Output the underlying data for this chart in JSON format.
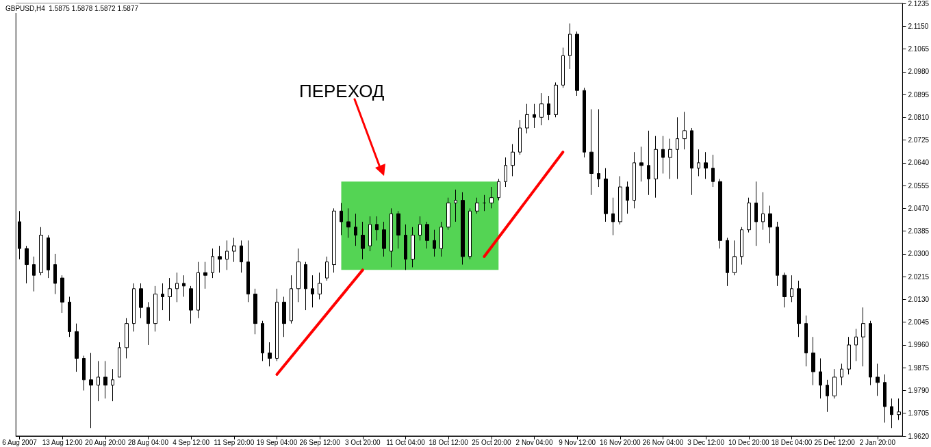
{
  "chart_data": {
    "type": "candlestick",
    "title": "GBPUSD,H4  1.5875 1.5878 1.5872 1.5877",
    "color": "#000000",
    "marker": "none",
    "grid": false,
    "annotations": [
      "ПЕРЕХОД"
    ],
    "categories": [
      "6 Aug 2007",
      null,
      null,
      null,
      null,
      null,
      "13 Aug 12:00",
      null,
      null,
      null,
      null,
      null,
      "20 Aug 20:00",
      null,
      null,
      null,
      null,
      null,
      "28 Aug 04:00",
      null,
      null,
      null,
      null,
      null,
      "4 Sep 12:00",
      null,
      null,
      null,
      null,
      null,
      "11 Sep 20:00",
      null,
      null,
      null,
      null,
      null,
      "19 Sep 04:00",
      null,
      null,
      null,
      null,
      null,
      "26 Sep 12:00",
      null,
      null,
      null,
      null,
      null,
      "3 Oct 20:00",
      null,
      null,
      null,
      null,
      null,
      "11 Oct 04:00",
      null,
      null,
      null,
      null,
      null,
      "18 Oct 12:00",
      null,
      null,
      null,
      null,
      null,
      "25 Oct 20:00",
      null,
      null,
      null,
      null,
      null,
      "2 Nov 04:00",
      null,
      null,
      null,
      null,
      null,
      "9 Nov 12:00",
      null,
      null,
      null,
      null,
      null,
      "16 Nov 20:00",
      null,
      null,
      null,
      null,
      null,
      "26 Nov 04:00",
      null,
      null,
      null,
      null,
      null,
      "3 Dec 12:00",
      null,
      null,
      null,
      null,
      null,
      "10 Dec 20:00",
      null,
      null,
      null,
      null,
      null,
      "18 Dec 04:00",
      null,
      null,
      null,
      null,
      null,
      "25 Dec 12:00",
      null,
      null,
      null,
      null,
      null,
      "2 Jan 20:00",
      null,
      null,
      null
    ],
    "ohlc": [
      [
        2.042,
        2.046,
        2.028,
        2.032
      ],
      [
        2.032,
        2.033,
        2.019,
        2.026
      ],
      [
        2.026,
        2.029,
        2.016,
        2.022
      ],
      [
        2.023,
        2.04,
        2.022,
        2.037
      ],
      [
        2.036,
        2.037,
        2.021,
        2.024
      ],
      [
        2.026,
        2.03,
        2.015,
        2.019
      ],
      [
        2.021,
        2.022,
        2.008,
        2.012
      ],
      [
        2.012,
        2.014,
        1.999,
        2.001
      ],
      [
        2.001,
        2.004,
        1.986,
        1.991
      ],
      [
        1.991,
        1.992,
        1.979,
        1.983
      ],
      [
        1.983,
        1.993,
        1.965,
        1.981
      ],
      [
        1.981,
        1.99,
        1.975,
        1.984
      ],
      [
        1.984,
        1.99,
        1.976,
        1.981
      ],
      [
        1.981,
        1.987,
        1.975,
        1.983
      ],
      [
        1.984,
        1.997,
        1.984,
        1.995
      ],
      [
        1.995,
        2.006,
        1.991,
        2.004
      ],
      [
        2.004,
        2.019,
        2.001,
        2.017
      ],
      [
        2.017,
        2.019,
        2.006,
        2.01
      ],
      [
        2.01,
        2.012,
        1.996,
        2.004
      ],
      [
        2.004,
        2.018,
        2.001,
        2.015
      ],
      [
        2.015,
        2.019,
        2.009,
        2.014
      ],
      [
        2.014,
        2.021,
        2.005,
        2.017
      ],
      [
        2.017,
        2.023,
        2.012,
        2.019
      ],
      [
        2.019,
        2.022,
        2.014,
        2.018
      ],
      [
        2.017,
        2.018,
        2.004,
        2.009
      ],
      [
        2.009,
        2.027,
        2.006,
        2.023
      ],
      [
        2.023,
        2.027,
        2.017,
        2.022
      ],
      [
        2.023,
        2.032,
        2.021,
        2.029
      ],
      [
        2.029,
        2.033,
        2.023,
        2.028
      ],
      [
        2.028,
        2.035,
        2.024,
        2.031
      ],
      [
        2.031,
        2.036,
        2.027,
        2.033
      ],
      [
        2.033,
        2.035,
        2.023,
        2.027
      ],
      [
        2.027,
        2.035,
        2.012,
        2.015
      ],
      [
        2.015,
        2.017,
        2.0,
        2.004
      ],
      [
        2.004,
        2.005,
        1.99,
        1.993
      ],
      [
        1.993,
        1.997,
        1.988,
        1.991
      ],
      [
        1.991,
        2.017,
        1.99,
        2.012
      ],
      [
        2.012,
        2.014,
        1.999,
        2.004
      ],
      [
        2.005,
        2.022,
        2.004,
        2.017
      ],
      [
        2.017,
        2.032,
        2.012,
        2.027
      ],
      [
        2.026,
        2.027,
        2.009,
        2.017
      ],
      [
        2.017,
        2.022,
        2.01,
        2.015
      ],
      [
        2.015,
        2.023,
        2.013,
        2.019
      ],
      [
        2.021,
        2.029,
        2.02,
        2.027
      ],
      [
        2.026,
        2.047,
        2.023,
        2.046
      ],
      [
        2.046,
        2.049,
        2.037,
        2.042
      ],
      [
        2.042,
        2.047,
        2.036,
        2.04
      ],
      [
        2.04,
        2.045,
        2.033,
        2.037
      ],
      [
        2.037,
        2.042,
        2.028,
        2.032
      ],
      [
        2.033,
        2.044,
        2.031,
        2.041
      ],
      [
        2.041,
        2.044,
        2.035,
        2.039
      ],
      [
        2.039,
        2.042,
        2.029,
        2.032
      ],
      [
        2.031,
        2.047,
        2.025,
        2.045
      ],
      [
        2.045,
        2.046,
        2.032,
        2.037
      ],
      [
        2.037,
        2.041,
        2.024,
        2.028
      ],
      [
        2.028,
        2.04,
        2.025,
        2.037
      ],
      [
        2.037,
        2.044,
        2.035,
        2.041
      ],
      [
        2.041,
        2.042,
        2.032,
        2.035
      ],
      [
        2.035,
        2.039,
        2.029,
        2.032
      ],
      [
        2.032,
        2.042,
        2.029,
        2.04
      ],
      [
        2.04,
        2.051,
        2.039,
        2.049
      ],
      [
        2.049,
        2.054,
        2.042,
        2.05
      ],
      [
        2.05,
        2.053,
        2.026,
        2.029
      ],
      [
        2.029,
        2.047,
        2.028,
        2.046
      ],
      [
        2.046,
        2.051,
        2.045,
        2.049
      ],
      [
        2.049,
        2.052,
        2.046,
        2.049
      ],
      [
        2.049,
        2.055,
        2.047,
        2.051
      ],
      [
        2.051,
        2.058,
        2.05,
        2.057
      ],
      [
        2.057,
        2.066,
        2.055,
        2.063
      ],
      [
        2.063,
        2.071,
        2.059,
        2.068
      ],
      [
        2.068,
        2.08,
        2.067,
        2.077
      ],
      [
        2.077,
        2.086,
        2.075,
        2.082
      ],
      [
        2.082,
        2.086,
        2.077,
        2.081
      ],
      [
        2.081,
        2.09,
        2.078,
        2.086
      ],
      [
        2.086,
        2.089,
        2.08,
        2.082
      ],
      [
        2.082,
        2.094,
        2.081,
        2.093
      ],
      [
        2.093,
        2.107,
        2.092,
        2.104
      ],
      [
        2.104,
        2.116,
        2.099,
        2.112
      ],
      [
        2.112,
        2.113,
        2.089,
        2.091
      ],
      [
        2.091,
        2.092,
        2.066,
        2.068
      ],
      [
        2.068,
        2.084,
        2.052,
        2.06
      ],
      [
        2.06,
        2.084,
        2.055,
        2.058
      ],
      [
        2.058,
        2.062,
        2.042,
        2.045
      ],
      [
        2.045,
        2.051,
        2.037,
        2.042
      ],
      [
        2.042,
        2.059,
        2.041,
        2.055
      ],
      [
        2.055,
        2.057,
        2.045,
        2.05
      ],
      [
        2.05,
        2.068,
        2.047,
        2.064
      ],
      [
        2.064,
        2.07,
        2.057,
        2.063
      ],
      [
        2.063,
        2.076,
        2.052,
        2.058
      ],
      [
        2.058,
        2.074,
        2.051,
        2.069
      ],
      [
        2.069,
        2.074,
        2.06,
        2.066
      ],
      [
        2.066,
        2.073,
        2.058,
        2.069
      ],
      [
        2.069,
        2.081,
        2.058,
        2.073
      ],
      [
        2.073,
        2.083,
        2.069,
        2.076
      ],
      [
        2.076,
        2.077,
        2.052,
        2.062
      ],
      [
        2.062,
        2.069,
        2.059,
        2.064
      ],
      [
        2.064,
        2.068,
        2.058,
        2.062
      ],
      [
        2.062,
        2.067,
        2.055,
        2.057
      ],
      [
        2.057,
        2.058,
        2.032,
        2.035
      ],
      [
        2.035,
        2.036,
        2.018,
        2.023
      ],
      [
        2.023,
        2.035,
        2.022,
        2.029
      ],
      [
        2.029,
        2.04,
        2.026,
        2.039
      ],
      [
        2.039,
        2.051,
        2.038,
        2.049
      ],
      [
        2.049,
        2.057,
        2.033,
        2.042
      ],
      [
        2.042,
        2.053,
        2.039,
        2.045
      ],
      [
        2.045,
        2.048,
        2.034,
        2.04
      ],
      [
        2.04,
        2.042,
        2.018,
        2.022
      ],
      [
        2.022,
        2.023,
        2.01,
        2.014
      ],
      [
        2.014,
        2.022,
        2.012,
        2.017
      ],
      [
        2.017,
        2.02,
        1.999,
        2.004
      ],
      [
        2.004,
        2.007,
        1.988,
        1.993
      ],
      [
        1.993,
        1.999,
        1.981,
        1.986
      ],
      [
        1.986,
        1.991,
        1.976,
        1.981
      ],
      [
        1.981,
        1.983,
        1.971,
        1.977
      ],
      [
        1.977,
        1.987,
        1.976,
        1.984
      ],
      [
        1.984,
        1.989,
        1.981,
        1.987
      ],
      [
        1.987,
        1.999,
        1.985,
        1.996
      ],
      [
        1.996,
        2.002,
        1.99,
        1.999
      ],
      [
        1.999,
        2.01,
        1.988,
        2.004
      ],
      [
        2.004,
        2.005,
        1.981,
        1.984
      ],
      [
        1.984,
        1.989,
        1.977,
        1.982
      ],
      [
        1.982,
        1.985,
        1.967,
        1.973
      ],
      [
        1.973,
        1.976,
        1.965,
        1.97
      ],
      [
        1.97,
        1.976,
        1.968,
        1.971
      ]
    ],
    "series": [
      {
        "type": "line",
        "color": "#ff0000",
        "values": [
          null,
          null,
          null,
          null,
          null,
          null,
          null,
          null,
          null,
          null,
          null,
          null,
          null,
          null,
          null,
          null,
          null,
          null,
          null,
          null,
          null,
          null,
          null,
          null,
          null,
          null,
          null,
          null,
          null,
          null,
          null,
          null,
          null,
          null,
          null,
          null,
          1.985,
          null,
          null,
          null,
          null,
          null,
          null,
          null,
          null,
          null,
          null,
          null,
          2.024,
          null,
          null,
          null,
          null,
          null,
          null,
          null,
          null,
          null,
          null,
          null,
          null,
          null,
          null,
          null,
          null,
          null,
          null,
          null,
          null,
          null,
          null,
          null,
          null,
          null,
          null,
          null,
          null,
          null,
          null,
          null,
          null,
          null,
          null,
          null,
          null,
          null,
          null,
          null,
          null,
          null,
          null,
          null,
          null,
          null,
          null,
          null,
          null,
          null,
          null,
          null,
          null,
          null,
          null,
          null,
          null,
          null,
          null,
          null,
          null,
          null,
          null,
          null,
          null,
          null,
          null,
          null,
          null,
          null,
          null,
          null,
          null,
          null,
          null,
          null
        ]
      },
      {
        "type": "line",
        "color": "#ff0000",
        "values": [
          null,
          null,
          null,
          null,
          null,
          null,
          null,
          null,
          null,
          null,
          null,
          null,
          null,
          null,
          null,
          null,
          null,
          null,
          null,
          null,
          null,
          null,
          null,
          null,
          null,
          null,
          null,
          null,
          null,
          null,
          null,
          null,
          null,
          null,
          null,
          null,
          null,
          null,
          null,
          null,
          null,
          null,
          null,
          null,
          null,
          null,
          null,
          null,
          null,
          null,
          null,
          null,
          null,
          null,
          null,
          null,
          null,
          null,
          null,
          null,
          null,
          null,
          null,
          null,
          null,
          2.029,
          null,
          null,
          null,
          null,
          null,
          null,
          null,
          null,
          null,
          null,
          2.068,
          null,
          null,
          null,
          null,
          null,
          null,
          null,
          null,
          null,
          null,
          null,
          null,
          null,
          null,
          null,
          null,
          null,
          null,
          null,
          null,
          null,
          null,
          null,
          null,
          null,
          null,
          null,
          null,
          null,
          null,
          null,
          null,
          null,
          null,
          null,
          null,
          null,
          null,
          null,
          null,
          null,
          null,
          null,
          null,
          null,
          null,
          null
        ]
      }
    ],
    "bands": [
      {
        "axis": "y",
        "from": 2.024,
        "to": 2.057,
        "color": "#54d454"
      }
    ],
    "ylim": [
      1.962,
      2.1235
    ],
    "yticks": [
      {
        "value": 1.962,
        "label": "1.9620"
      },
      1.9705,
      {
        "value": 1.979,
        "label": "1.9790"
      },
      1.9875,
      {
        "value": 1.996,
        "label": "1.9960"
      },
      2.0045,
      {
        "value": 2.013,
        "label": "2.0130"
      },
      2.0215,
      {
        "value": 2.03,
        "label": "2.0300"
      },
      2.0385,
      {
        "value": 2.047,
        "label": "2.0470"
      },
      2.0555,
      {
        "value": 2.064,
        "label": "2.0640"
      },
      2.0725,
      {
        "value": 2.081,
        "label": "2.0810"
      },
      2.0895,
      {
        "value": 2.098,
        "label": "2.0980"
      },
      2.1065,
      {
        "value": 2.115,
        "label": "2.1150"
      },
      2.1235
    ]
  }
}
